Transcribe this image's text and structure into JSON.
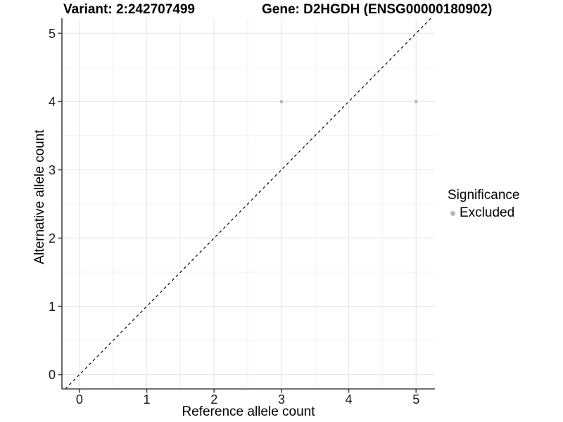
{
  "titles": {
    "variant": "Variant: 2:242707499",
    "gene": "Gene: D2HGDH (ENSG00000180902)"
  },
  "chart_data": {
    "type": "scatter",
    "title_left": "Variant: 2:242707499",
    "title_right": "Gene: D2HGDH (ENSG00000180902)",
    "xlabel": "Reference allele count",
    "ylabel": "Alternative allele count",
    "xlim": [
      -0.26,
      5.28
    ],
    "ylim": [
      -0.21,
      5.22
    ],
    "xticks": [
      0,
      1,
      2,
      3,
      4,
      5
    ],
    "yticks": [
      0,
      1,
      2,
      3,
      4,
      5
    ],
    "grid": "major and minor gridlines, white panel, no panel border",
    "series": [
      {
        "name": "Excluded",
        "marker": "circle",
        "color": "#b8b8b8",
        "points": [
          [
            3,
            4
          ],
          [
            5,
            4
          ]
        ]
      }
    ],
    "reference_line": {
      "type": "abline",
      "slope": 1,
      "intercept": 0,
      "style": "dashed",
      "color": "#000000"
    },
    "legend": {
      "title": "Significance",
      "position": "right",
      "items": [
        {
          "label": "Excluded",
          "color": "#b8b8b8",
          "marker": "circle"
        }
      ]
    }
  },
  "colors": {
    "background": "#ffffff",
    "grid_major": "#e4e4e4",
    "grid_minor": "#f0f0f0",
    "axis_line": "#454545",
    "tick_text": "#1a1a1a",
    "point": "#b8b8b8",
    "identity_line": "#000000"
  }
}
